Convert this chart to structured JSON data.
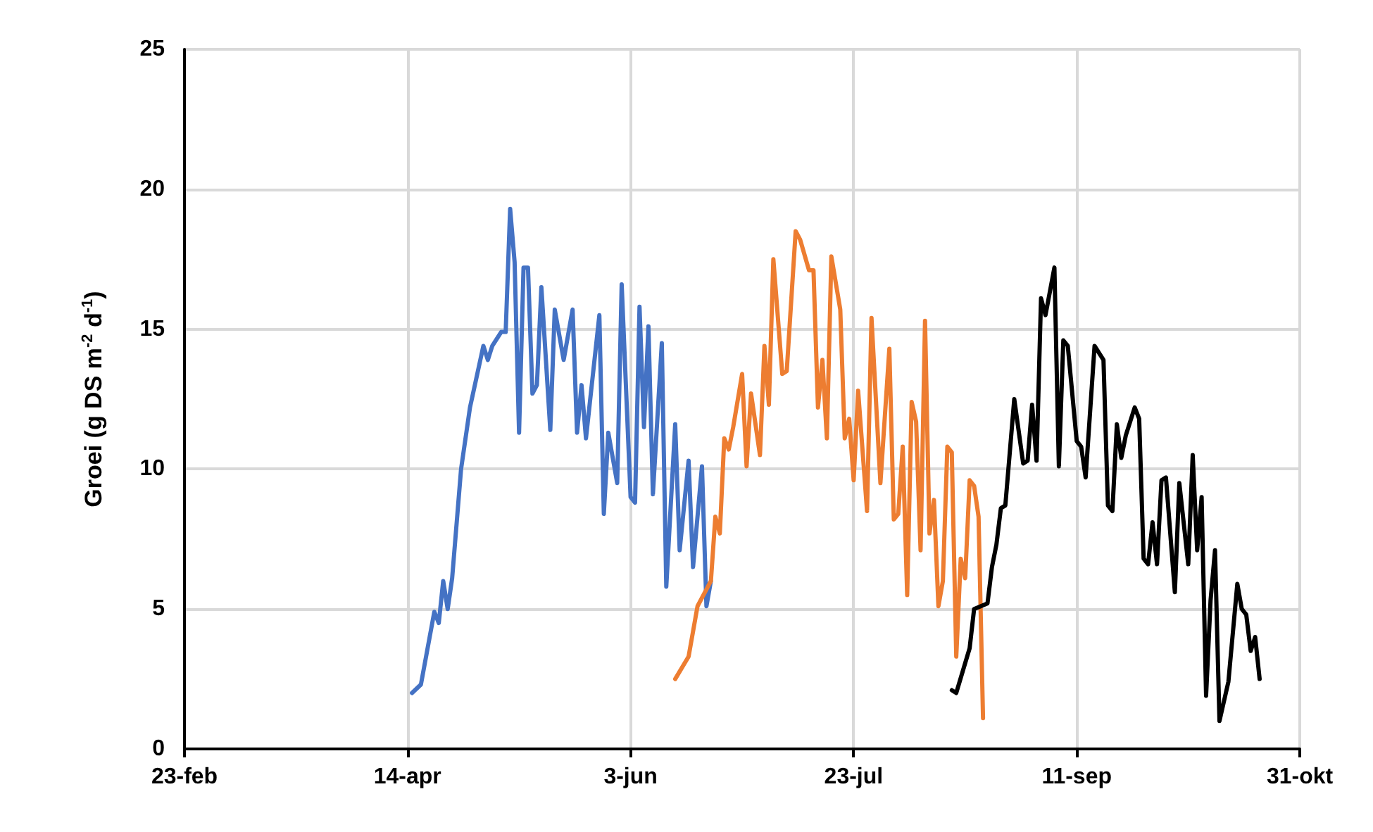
{
  "chart_data": {
    "type": "line",
    "ylabel": "Groei (g DS m$^{-2}$ d$^{-1}$)",
    "xlim": [
      "--02-23",
      "--10-31"
    ],
    "xticks": [
      {
        "value": "--02-23",
        "label": "23-feb"
      },
      {
        "value": "--04-14",
        "label": "14-apr"
      },
      {
        "value": "--06-03",
        "label": "3-jun"
      },
      {
        "value": "--07-23",
        "label": "23-jul"
      },
      {
        "value": "--09-11",
        "label": "11-sep"
      },
      {
        "value": "--10-31",
        "label": "31-okt"
      }
    ],
    "ylim": [
      0,
      25
    ],
    "yticks": [
      0,
      5,
      10,
      15,
      20,
      25
    ],
    "grid": true,
    "marker": "none",
    "line_style": "solid",
    "series": [
      {
        "color": "#4472c4",
        "x": [
          "--04-15",
          "--04-17",
          "--04-20",
          "--04-21",
          "--04-22",
          "--04-23",
          "--04-24",
          "--04-26",
          "--04-28",
          "--05-01",
          "--05-02",
          "--05-03",
          "--05-05",
          "--05-06",
          "--05-07",
          "--05-08",
          "--05-09",
          "--05-10",
          "--05-11",
          "--05-12",
          "--05-13",
          "--05-14",
          "--05-16",
          "--05-17",
          "--05-19",
          "--05-21",
          "--05-22",
          "--05-23",
          "--05-24",
          "--05-27",
          "--05-28",
          "--05-29",
          "--05-31",
          "--06-01",
          "--06-03",
          "--06-04",
          "--06-05",
          "--06-06",
          "--06-07",
          "--06-08",
          "--06-10",
          "--06-11",
          "--06-13",
          "--06-14",
          "--06-16",
          "--06-17",
          "--06-19",
          "--06-20",
          "--06-21"
        ],
        "values": [
          2.0,
          2.3,
          4.9,
          4.5,
          6.0,
          5.0,
          6.1,
          10.0,
          12.2,
          14.4,
          13.9,
          14.4,
          14.9,
          14.9,
          19.3,
          17.4,
          11.3,
          17.2,
          17.2,
          12.7,
          13.0,
          16.5,
          11.4,
          15.7,
          13.9,
          15.7,
          11.3,
          13.0,
          11.1,
          15.5,
          8.4,
          11.3,
          9.5,
          16.6,
          9.0,
          8.8,
          15.8,
          11.5,
          15.1,
          9.1,
          14.5,
          5.8,
          11.6,
          7.1,
          10.3,
          6.5,
          10.1,
          5.1,
          6.0
        ]
      },
      {
        "color": "#ed7d31",
        "x": [
          "--06-13",
          "--06-16",
          "--06-18",
          "--06-21",
          "--06-22",
          "--06-23",
          "--06-24",
          "--06-25",
          "--06-26",
          "--06-28",
          "--06-29",
          "--06-30",
          "--07-02",
          "--07-03",
          "--07-04",
          "--07-05",
          "--07-07",
          "--07-08",
          "--07-10",
          "--07-11",
          "--07-13",
          "--07-14",
          "--07-15",
          "--07-16",
          "--07-17",
          "--07-18",
          "--07-20",
          "--07-21",
          "--07-22",
          "--07-23",
          "--07-24",
          "--07-26",
          "--07-27",
          "--07-29",
          "--07-31",
          "--08-01",
          "--08-02",
          "--08-03",
          "--08-04",
          "--08-05",
          "--08-06",
          "--08-07",
          "--08-08",
          "--08-09",
          "--08-10",
          "--08-11",
          "--08-12",
          "--08-13",
          "--08-14",
          "--08-15",
          "--08-16",
          "--08-17",
          "--08-18",
          "--08-19",
          "--08-20",
          "--08-21"
        ],
        "values": [
          2.5,
          3.3,
          5.1,
          6.0,
          8.3,
          7.7,
          11.1,
          10.7,
          11.5,
          13.4,
          10.1,
          12.7,
          10.5,
          14.4,
          12.3,
          17.5,
          13.4,
          13.5,
          18.5,
          18.2,
          17.1,
          17.1,
          12.2,
          13.9,
          11.1,
          17.6,
          15.7,
          11.1,
          11.8,
          9.6,
          12.8,
          8.5,
          15.4,
          9.5,
          14.3,
          8.2,
          8.4,
          10.8,
          5.5,
          12.4,
          11.7,
          7.1,
          15.3,
          7.7,
          8.9,
          5.1,
          6.0,
          10.8,
          10.6,
          3.3,
          6.8,
          6.1,
          9.6,
          9.4,
          8.3,
          1.1
        ]
      },
      {
        "color": "#000000",
        "x": [
          "--08-14",
          "--08-15",
          "--08-18",
          "--08-19",
          "--08-22",
          "--08-23",
          "--08-24",
          "--08-25",
          "--08-26",
          "--08-28",
          "--08-30",
          "--08-31",
          "--09-01",
          "--09-02",
          "--09-03",
          "--09-04",
          "--09-06",
          "--09-07",
          "--09-08",
          "--09-09",
          "--09-11",
          "--09-12",
          "--09-13",
          "--09-15",
          "--09-17",
          "--09-18",
          "--09-19",
          "--09-20",
          "--09-21",
          "--09-22",
          "--09-24",
          "--09-25",
          "--09-26",
          "--09-27",
          "--09-28",
          "--09-29",
          "--09-30",
          "--10-01",
          "--10-03",
          "--10-04",
          "--10-06",
          "--10-07",
          "--10-08",
          "--10-09",
          "--10-10",
          "--10-11",
          "--10-12",
          "--10-13",
          "--10-15",
          "--10-17",
          "--10-18",
          "--10-19",
          "--10-20",
          "--10-21",
          "--10-22"
        ],
        "values": [
          2.1,
          2.0,
          3.6,
          5.0,
          5.2,
          6.5,
          7.3,
          8.6,
          8.7,
          12.5,
          10.2,
          10.3,
          12.3,
          10.3,
          16.1,
          15.5,
          17.2,
          10.1,
          14.6,
          14.4,
          11.0,
          10.8,
          9.7,
          14.4,
          13.9,
          8.7,
          8.5,
          11.6,
          10.4,
          11.2,
          12.2,
          11.8,
          6.8,
          6.6,
          8.1,
          6.6,
          9.6,
          9.7,
          5.6,
          9.5,
          6.6,
          10.5,
          7.1,
          9.0,
          1.9,
          5.3,
          7.1,
          1.0,
          2.4,
          5.9,
          5.0,
          4.8,
          3.5,
          4.0,
          2.5
        ]
      }
    ]
  }
}
